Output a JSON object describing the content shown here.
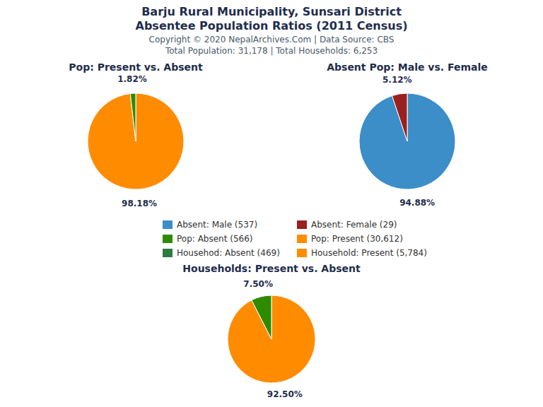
{
  "title": [
    "Barju Rural Municipality, Sunsari District",
    "Absentee Population Ratios (2011 Census)"
  ],
  "subtitle": [
    "Copyright © 2020 NepalArchives.Com | Data Source: CBS",
    "Total Population: 31,178 | Total Households: 6,253"
  ],
  "chart_data": [
    {
      "type": "pie",
      "title": "Pop: Present vs. Absent",
      "values": [
        98.18,
        1.82
      ],
      "value_labels": [
        "98.18%",
        "1.82%"
      ],
      "colors": [
        "#FF8C00",
        "#2E8B00"
      ],
      "data_labels": true
    },
    {
      "type": "pie",
      "title": "Absent Pop: Male vs. Female",
      "values": [
        94.88,
        5.12
      ],
      "value_labels": [
        "94.88%",
        "5.12%"
      ],
      "colors": [
        "#3B8EC8",
        "#9B2020"
      ],
      "data_labels": true
    },
    {
      "type": "pie",
      "title": "Households: Present vs. Absent",
      "values": [
        92.5,
        7.5
      ],
      "value_labels": [
        "92.50%",
        "7.50%"
      ],
      "colors": [
        "#FF8C00",
        "#2E8B00"
      ],
      "data_labels": true
    }
  ],
  "legend_items": [
    {
      "name": "Absent: Male (537)",
      "color": "#3B8EC8"
    },
    {
      "name": "Absent: Female (29)",
      "color": "#9B2020"
    },
    {
      "name": "Pop: Absent (566)",
      "color": "#2E8B00"
    },
    {
      "name": "Pop: Present (30,612)",
      "color": "#FF8C00"
    },
    {
      "name": "Househod: Absent (469)",
      "color": "#2E7B40"
    },
    {
      "name": "Household: Present (5,784)",
      "color": "#FF8C00"
    }
  ]
}
